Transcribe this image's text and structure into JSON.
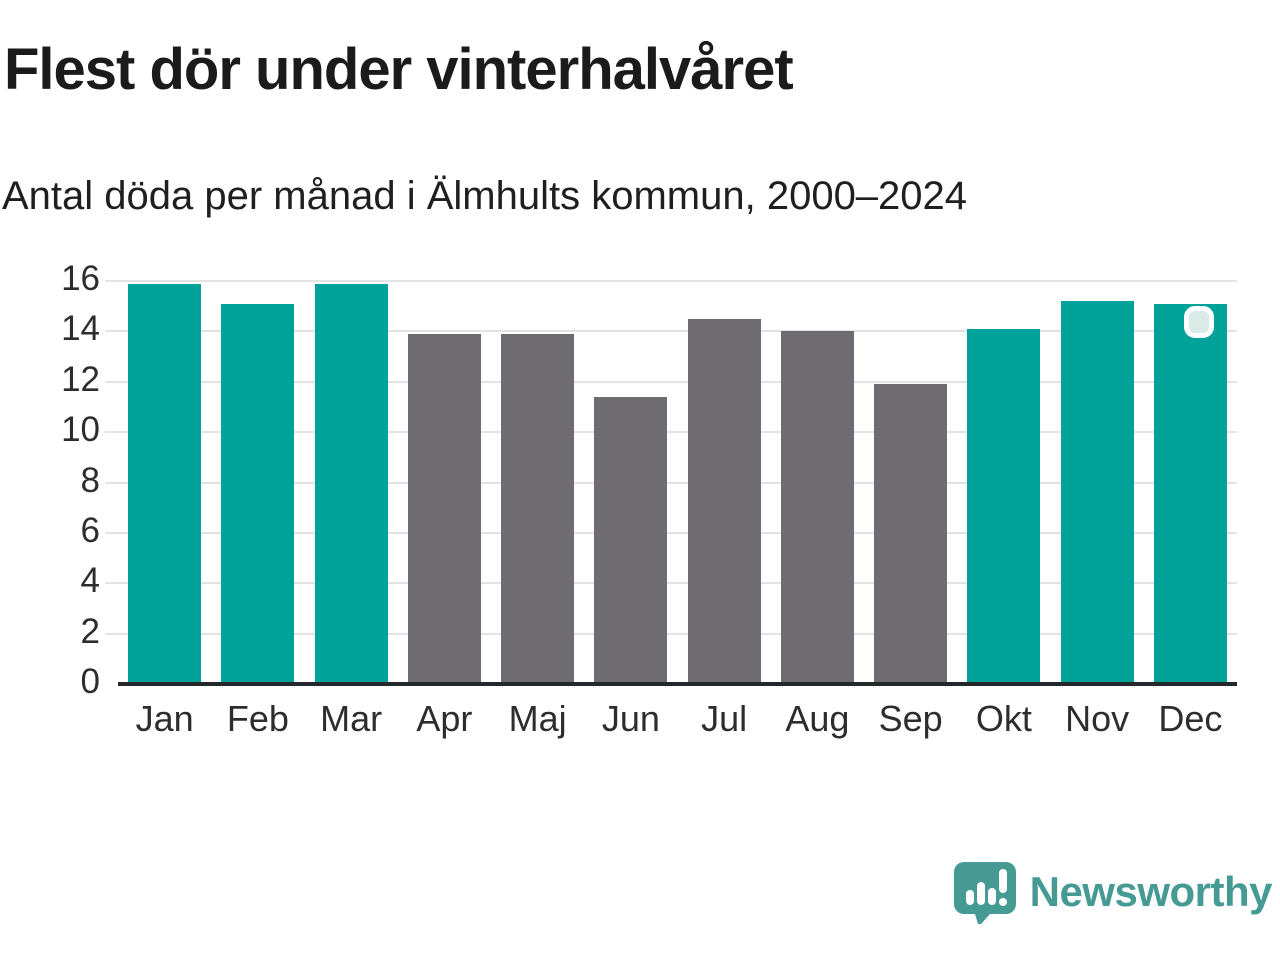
{
  "header": {
    "title": "Flest dör under vinterhalvåret",
    "subtitle": "Antal döda per månad i Älmhults kommun, 2000–2024"
  },
  "chart_data": {
    "type": "bar",
    "title": "Flest dör under vinterhalvåret",
    "subtitle": "Antal döda per månad i Älmhults kommun, 2000–2024",
    "categories": [
      "Jan",
      "Feb",
      "Mar",
      "Apr",
      "Maj",
      "Jun",
      "Jul",
      "Aug",
      "Sep",
      "Okt",
      "Nov",
      "Dec"
    ],
    "values": [
      15.9,
      15.1,
      15.9,
      13.9,
      13.9,
      11.4,
      14.5,
      14.0,
      11.9,
      14.1,
      15.2,
      15.1
    ],
    "bar_color_keys": [
      "highlight",
      "highlight",
      "highlight",
      "default",
      "default",
      "default",
      "default",
      "default",
      "default",
      "highlight",
      "highlight",
      "highlight"
    ],
    "colors": {
      "highlight": "#00A29A",
      "default": "#6E6C70"
    },
    "xlabel": "",
    "ylabel": "",
    "ylim": [
      0,
      16
    ],
    "yticks": [
      0,
      2,
      4,
      6,
      8,
      10,
      12,
      14,
      16
    ],
    "grid": true,
    "legend_position": "none",
    "highlighted_bar": "Dec"
  },
  "overlay": {
    "handle_on_month": "Dec"
  },
  "footer": {
    "brand": "Newsworthy",
    "brand_color": "#459B93",
    "logo_icon": "bar-chart-speech-bubble-icon"
  }
}
